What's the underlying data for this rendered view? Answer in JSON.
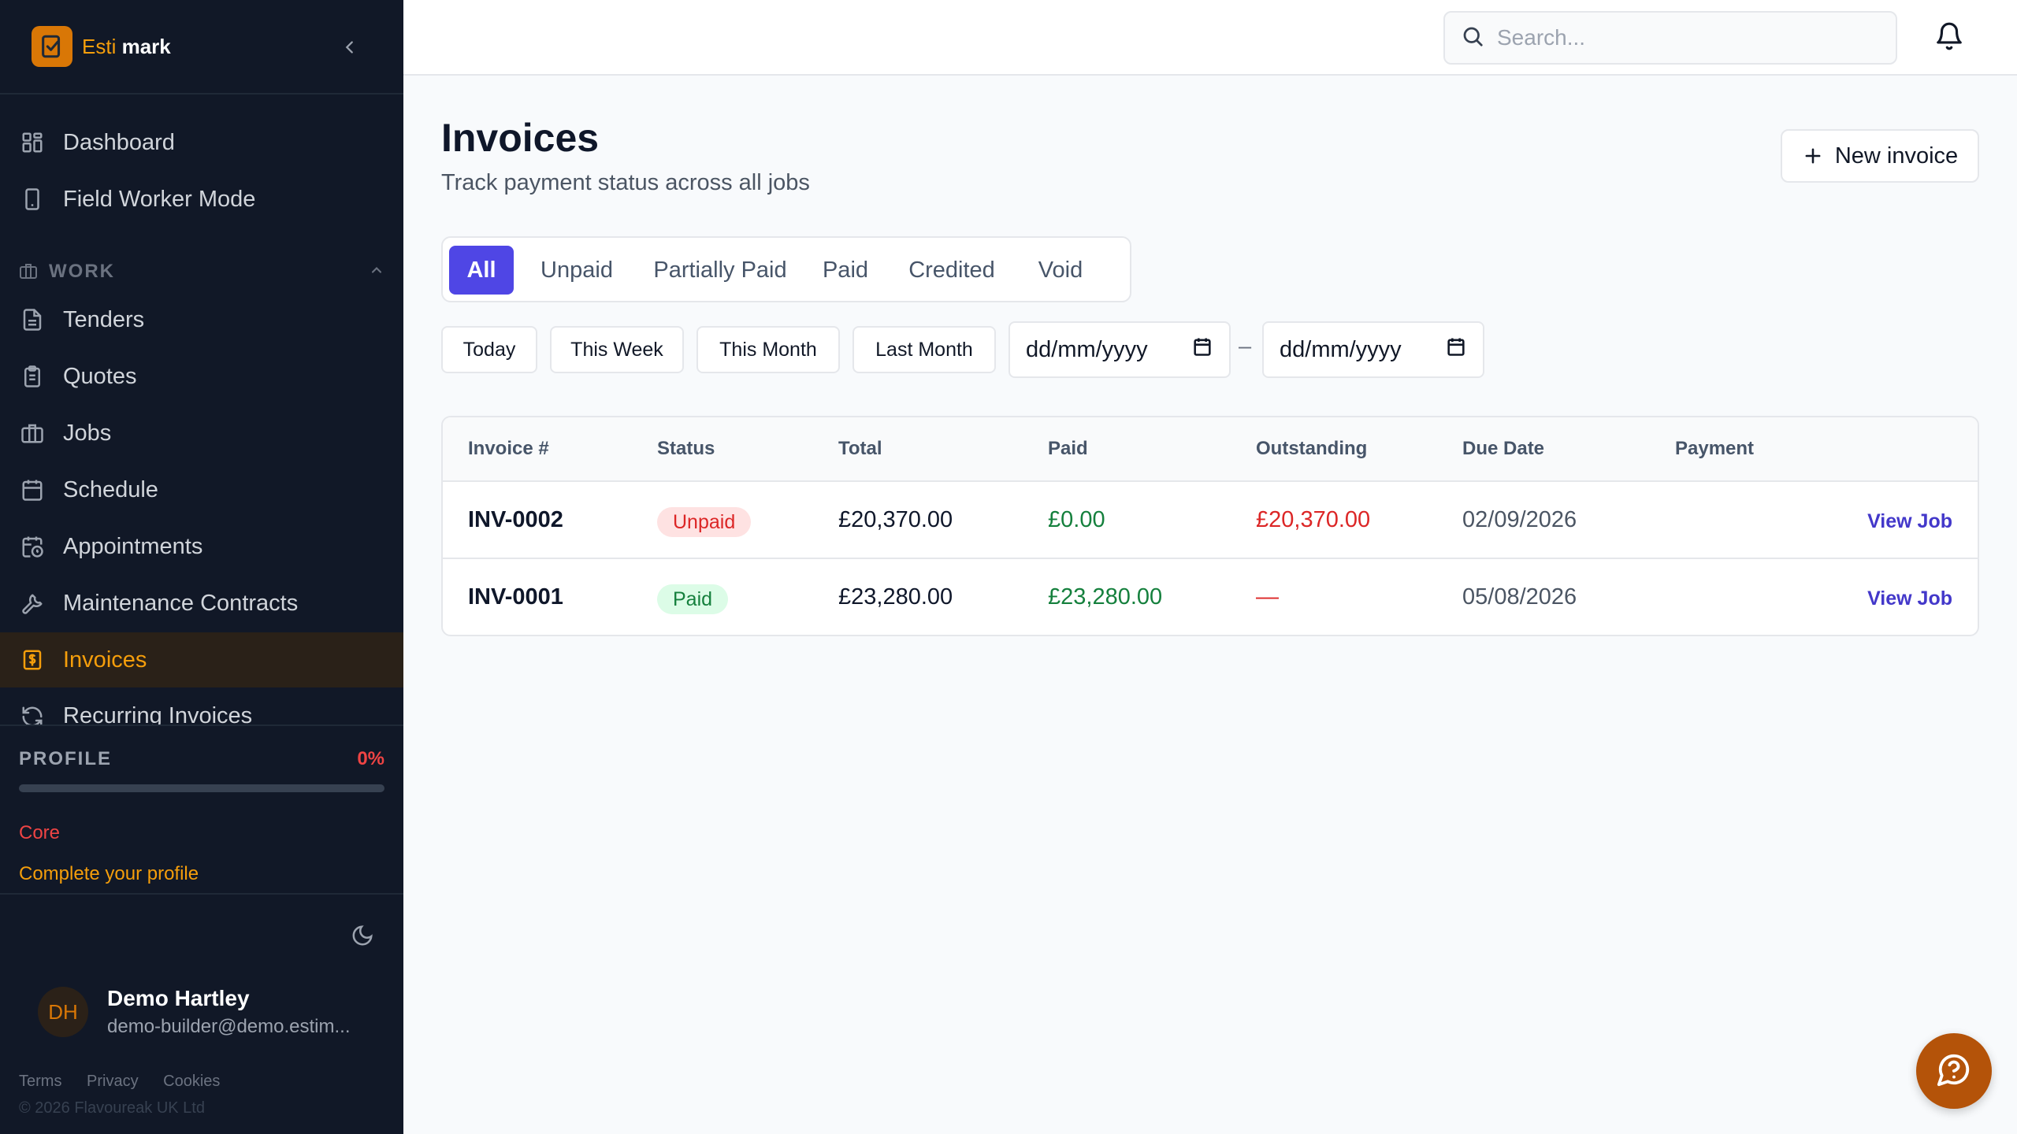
{
  "brand": {
    "name_a": "Esti",
    "name_b": "mark"
  },
  "sidebar": {
    "items_top": [
      {
        "label": "Dashboard",
        "icon": "grid-icon"
      },
      {
        "label": "Field Worker Mode",
        "icon": "phone-icon"
      }
    ],
    "section_label": "WORK",
    "items_work": [
      {
        "label": "Tenders",
        "icon": "document-icon"
      },
      {
        "label": "Quotes",
        "icon": "clipboard-icon"
      },
      {
        "label": "Jobs",
        "icon": "briefcase-icon"
      },
      {
        "label": "Schedule",
        "icon": "calendar-icon"
      },
      {
        "label": "Appointments",
        "icon": "calendar-clock-icon"
      },
      {
        "label": "Maintenance Contracts",
        "icon": "wrench-icon"
      },
      {
        "label": "Invoices",
        "icon": "receipt-icon",
        "active": true
      },
      {
        "label": "Recurring Invoices",
        "icon": "refresh-icon"
      }
    ],
    "profile": {
      "label": "PROFILE",
      "percent_text": "0%",
      "percent": 0,
      "core": "Core",
      "link": "Complete your profile"
    },
    "user": {
      "initials": "DH",
      "name": "Demo Hartley",
      "email": "demo-builder@demo.estim..."
    },
    "legal": [
      "Terms",
      "Privacy",
      "Cookies"
    ],
    "copyright": "© 2026 Flavoureak UK Ltd"
  },
  "topbar": {
    "search_placeholder": "Search..."
  },
  "page": {
    "title": "Invoices",
    "subtitle": "Track payment status across all jobs",
    "new_button": "New invoice"
  },
  "tabs": [
    "All",
    "Unpaid",
    "Partially Paid",
    "Paid",
    "Credited",
    "Void"
  ],
  "ranges": [
    "Today",
    "This Week",
    "This Month",
    "Last Month"
  ],
  "date_from": "dd/mm/yyyy",
  "date_to": "dd/mm/yyyy",
  "date_separator": "–",
  "table": {
    "headers": [
      "Invoice #",
      "Status",
      "Total",
      "Paid",
      "Outstanding",
      "Due Date",
      "Payment"
    ],
    "rows": [
      {
        "invoice": "INV-0002",
        "status": "Unpaid",
        "total": "£20,370.00",
        "paid": "£0.00",
        "outstanding": "£20,370.00",
        "due": "02/09/2026",
        "action": "View Job"
      },
      {
        "invoice": "INV-0001",
        "status": "Paid",
        "total": "£23,280.00",
        "paid": "£23,280.00",
        "outstanding": "—",
        "due": "05/08/2026",
        "action": "View Job"
      }
    ]
  },
  "colors": {
    "accent": "#4f46e5",
    "brand": "#d97706",
    "sidebar": "#111827"
  }
}
